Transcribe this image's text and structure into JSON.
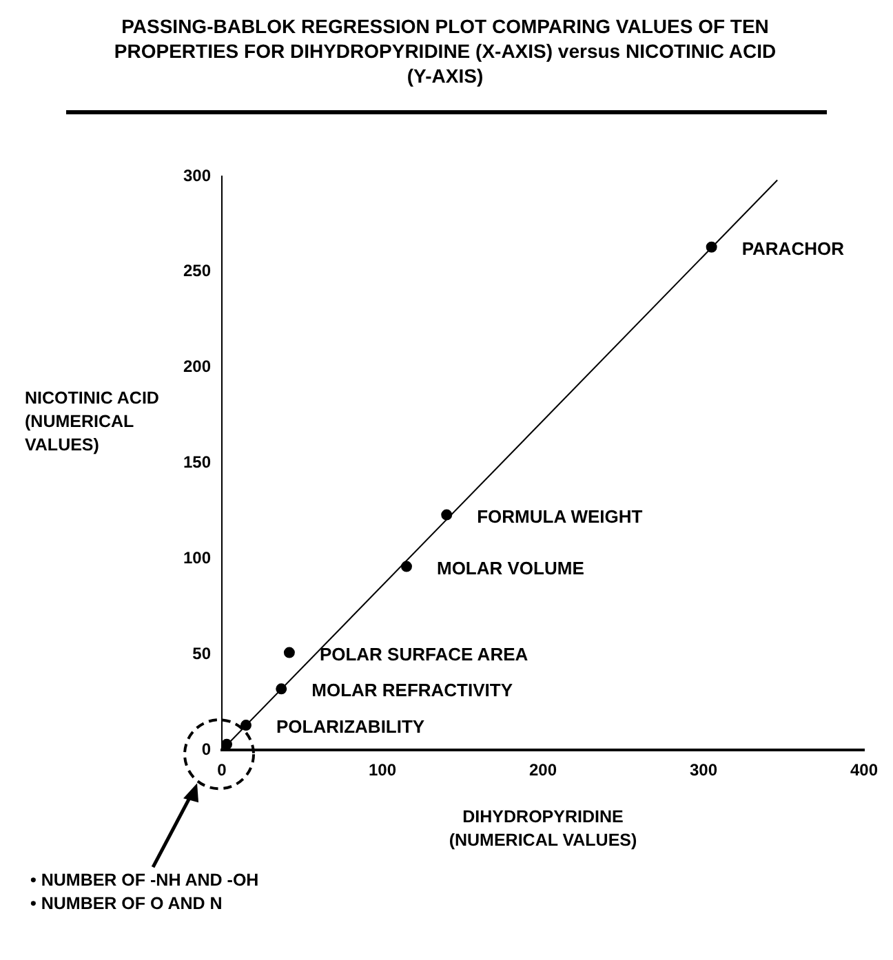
{
  "chart_data": {
    "type": "scatter",
    "title": "PASSING-BABLOK REGRESSION PLOT COMPARING VALUES OF TEN PROPERTIES FOR DIHYDROPYRIDINE (X-AXIS) versus NICOTINIC ACID (Y-AXIS)",
    "xlabel": "DIHYDROPYRIDINE (NUMERICAL VALUES)",
    "ylabel": "NICOTINIC ACID (NUMERICAL VALUES)",
    "series": [
      {
        "type": "scatter",
        "color": "#000000",
        "marker": "circle",
        "x": [
          305,
          140,
          115,
          42,
          37,
          15,
          3
        ],
        "values": [
          263,
          123,
          96,
          51,
          32,
          13,
          3
        ]
      },
      {
        "type": "line",
        "color": "#000000",
        "marker": "none",
        "x": [
          0,
          346
        ],
        "values": [
          0,
          298
        ]
      }
    ],
    "xlim": [
      0,
      400
    ],
    "ylim": [
      0,
      300
    ],
    "xticks": [
      0,
      100,
      200,
      300,
      400
    ],
    "yticks": [
      0,
      50,
      100,
      150,
      200,
      250,
      300
    ],
    "grid": false,
    "legend": false,
    "line_style": "solid",
    "annotations": [
      {
        "text": "PARACHOR",
        "x": 305,
        "y": 263
      },
      {
        "text": "FORMULA WEIGHT",
        "x": 140,
        "y": 123
      },
      {
        "text": "MOLAR VOLUME",
        "x": 115,
        "y": 96
      },
      {
        "text": "POLAR SURFACE AREA",
        "x": 42,
        "y": 51
      },
      {
        "text": "MOLAR REFRACTIVITY",
        "x": 37,
        "y": 32
      },
      {
        "text": "POLARIZABILITY",
        "x": 15,
        "y": 13
      },
      "• NUMBER OF -NH AND -OH",
      "• NUMBER OF O AND N"
    ]
  }
}
